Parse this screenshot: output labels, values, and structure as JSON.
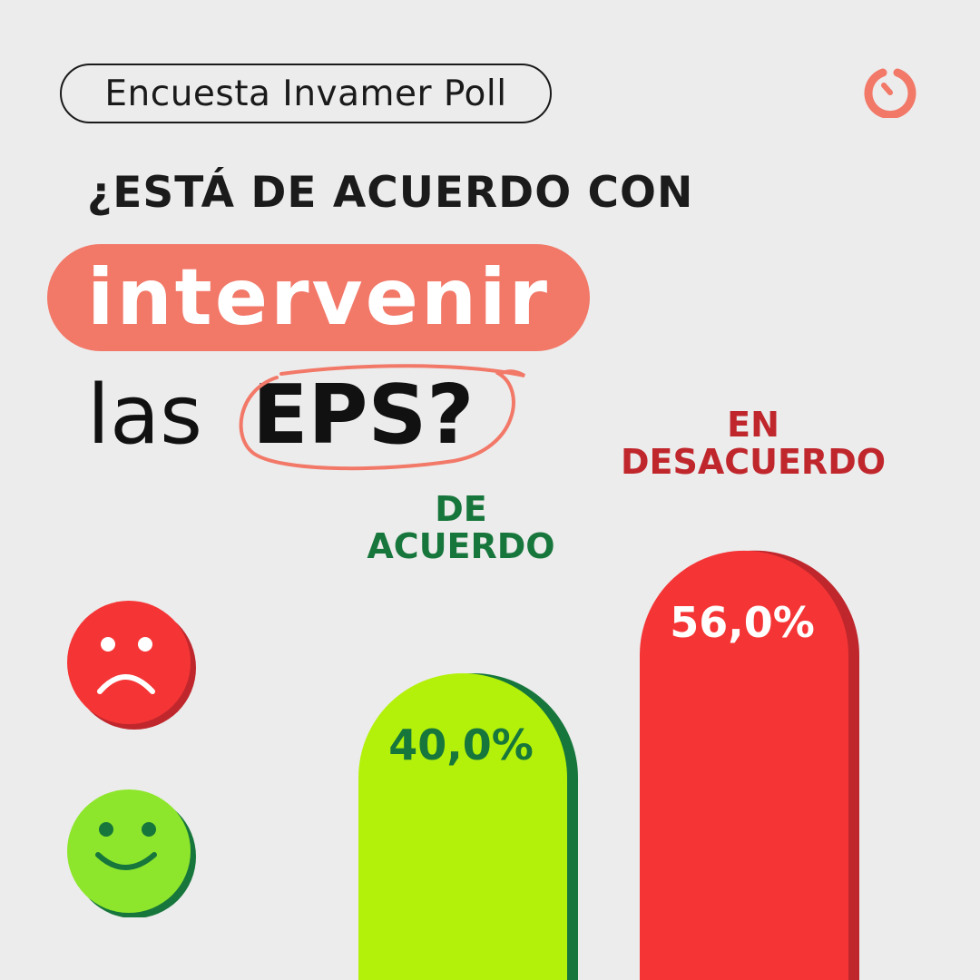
{
  "header": {
    "source_label": "Encuesta Invamer Poll",
    "logo_icon": "poll-gauge-icon"
  },
  "question": {
    "line1": "¿ESTÁ DE ACUERDO CON",
    "line2": "intervenir",
    "line3_part1": "las",
    "line3_part2": "EPS?"
  },
  "colors": {
    "accent": "#f27868",
    "agree": "#b3f10a",
    "agree_shadow": "#17763b",
    "disagree": "#f53535",
    "disagree_shadow": "#c0272d"
  },
  "faces": [
    {
      "icon": "sad-face-icon",
      "color": "#f53535"
    },
    {
      "icon": "happy-face-icon",
      "color": "#8ee62c"
    }
  ],
  "chart_data": {
    "type": "bar",
    "categories": [
      "DE ACUERDO",
      "EN DESACUERDO"
    ],
    "category_lines": [
      [
        "DE",
        "ACUERDO"
      ],
      [
        "EN",
        "DESACUERDO"
      ]
    ],
    "values": [
      40.0,
      56.0
    ],
    "value_labels": [
      "40,0%",
      "56,0%"
    ],
    "colors": [
      "#b3f10a",
      "#f53535"
    ],
    "ylim": [
      0,
      80
    ]
  }
}
